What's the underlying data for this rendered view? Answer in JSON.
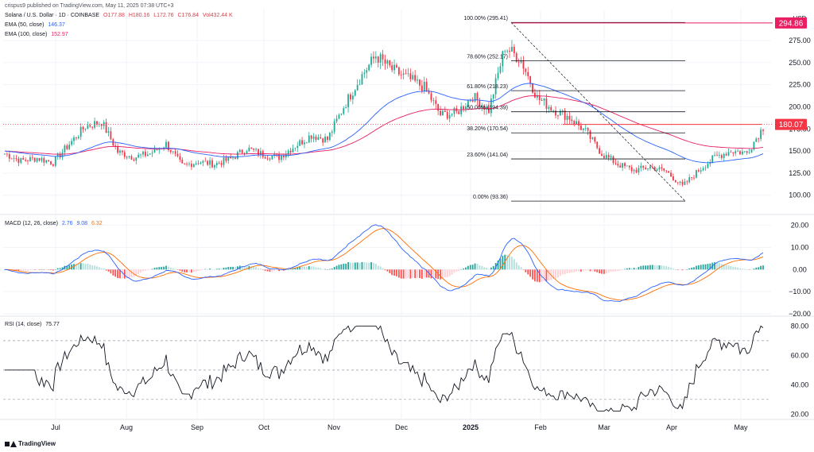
{
  "header": {
    "publisher": "crispus9 published on TradingView.com, May 11, 2025 07:38 UTC+3",
    "symbol": "Solana / U.S. Dollar · 1D · COINBASE",
    "ohlc": {
      "open": "O177.88",
      "high": "H180.16",
      "low": "L172.76",
      "close": "C176.84",
      "volume": "Vol432.44 K"
    },
    "ema50": {
      "label": "EMA (50, close)",
      "value": "146.37"
    },
    "ema100": {
      "label": "EMA (100, close)",
      "value": "152.97"
    }
  },
  "currency": "USD",
  "brand": "TradingView",
  "colors": {
    "up": "#22ab94",
    "down": "#f23645",
    "ema50": "#2962ff",
    "ema100": "#e91e63",
    "macd": "#2962ff",
    "signal": "#ff6d00",
    "rsi": "#131722",
    "highLabel": "#e91e63",
    "lastLabel": "#f23645"
  },
  "chart_data": [
    {
      "type": "candlestick",
      "title": "Solana / U.S. Dollar · 1D · COINBASE",
      "ylim": [
        80,
        310
      ],
      "yticks": [
        "100.00",
        "125.00",
        "150.00",
        "175.00",
        "200.00",
        "225.00",
        "250.00",
        "275.00"
      ],
      "xticks": [
        "Jul",
        "Aug",
        "Sep",
        "Oct",
        "Nov",
        "Dec",
        "2025",
        "Feb",
        "Mar",
        "Apr",
        "May"
      ],
      "close_path": [
        [
          "Jun 15",
          147
        ],
        [
          "Jun 22",
          139
        ],
        [
          "Jun 29",
          142
        ],
        [
          "Jul 6",
          137
        ],
        [
          "Jul 13",
          158
        ],
        [
          "Jul 20",
          178
        ],
        [
          "Jul 27",
          183
        ],
        [
          "Aug 3",
          149
        ],
        [
          "Aug 10",
          143
        ],
        [
          "Aug 17",
          147
        ],
        [
          "Aug 24",
          158
        ],
        [
          "Aug 31",
          133
        ],
        [
          "Sep 7",
          138
        ],
        [
          "Sep 14",
          135
        ],
        [
          "Sep 21",
          141
        ],
        [
          "Sep 28",
          153
        ],
        [
          "Oct 5",
          146
        ],
        [
          "Oct 12",
          143
        ],
        [
          "Oct 19",
          156
        ],
        [
          "Oct 26",
          168
        ],
        [
          "Nov 2",
          163
        ],
        [
          "Nov 9",
          200
        ],
        [
          "Nov 16",
          232
        ],
        [
          "Nov 23",
          258
        ],
        [
          "Nov 30",
          242
        ],
        [
          "Dec 7",
          232
        ],
        [
          "Dec 14",
          222
        ],
        [
          "Dec 21",
          191
        ],
        [
          "Dec 28",
          193
        ],
        [
          "Jan 4",
          212
        ],
        [
          "Jan 11",
          196
        ],
        [
          "Jan 18",
          268
        ],
        [
          "Jan 25",
          253
        ],
        [
          "Feb 1",
          210
        ],
        [
          "Feb 8",
          197
        ],
        [
          "Feb 15",
          188
        ],
        [
          "Feb 22",
          172
        ],
        [
          "Mar 1",
          147
        ],
        [
          "Mar 8",
          135
        ],
        [
          "Mar 15",
          128
        ],
        [
          "Mar 22",
          132
        ],
        [
          "Mar 29",
          127
        ],
        [
          "Apr 5",
          110
        ],
        [
          "Apr 12",
          128
        ],
        [
          "Apr 19",
          143
        ],
        [
          "Apr 26",
          150
        ],
        [
          "May 3",
          148
        ],
        [
          "May 10",
          177
        ]
      ],
      "fibonacci": [
        {
          "label": "100.00%",
          "price": 295.41,
          "value": "(295.41)"
        },
        {
          "label": "78.60%",
          "price": 252.17,
          "value": "(252.17)"
        },
        {
          "label": "61.80%",
          "price": 218.23,
          "value": "(218.23)"
        },
        {
          "label": "50.00%",
          "price": 194.39,
          "value": "(194.39)"
        },
        {
          "label": "38.20%",
          "price": 170.54,
          "value": "(170.54)"
        },
        {
          "label": "23.60%",
          "price": 141.04,
          "value": "(141.04)"
        },
        {
          "label": "0.00%",
          "price": 93.36,
          "value": "(93.36)"
        }
      ],
      "high_label": {
        "price": 294.86,
        "text": "294.86"
      },
      "last_label": {
        "price": 180.07,
        "text": "180.07"
      }
    },
    {
      "type": "macd",
      "title": "MACD (12, 26, close)",
      "values": {
        "histogram": "2.76",
        "macd": "9.08",
        "signal": "6.32"
      },
      "ylim": [
        -20,
        22
      ],
      "yticks": [
        "20.00",
        "10.00",
        "0.00",
        "−10.00",
        "−20.00"
      ]
    },
    {
      "type": "rsi",
      "title": "RSI (14, close)",
      "value": "75.77",
      "ylim": [
        18,
        84
      ],
      "levels": [
        30,
        50,
        70
      ],
      "yticks": [
        "80.00",
        "60.00",
        "40.00",
        "20.00"
      ]
    }
  ]
}
